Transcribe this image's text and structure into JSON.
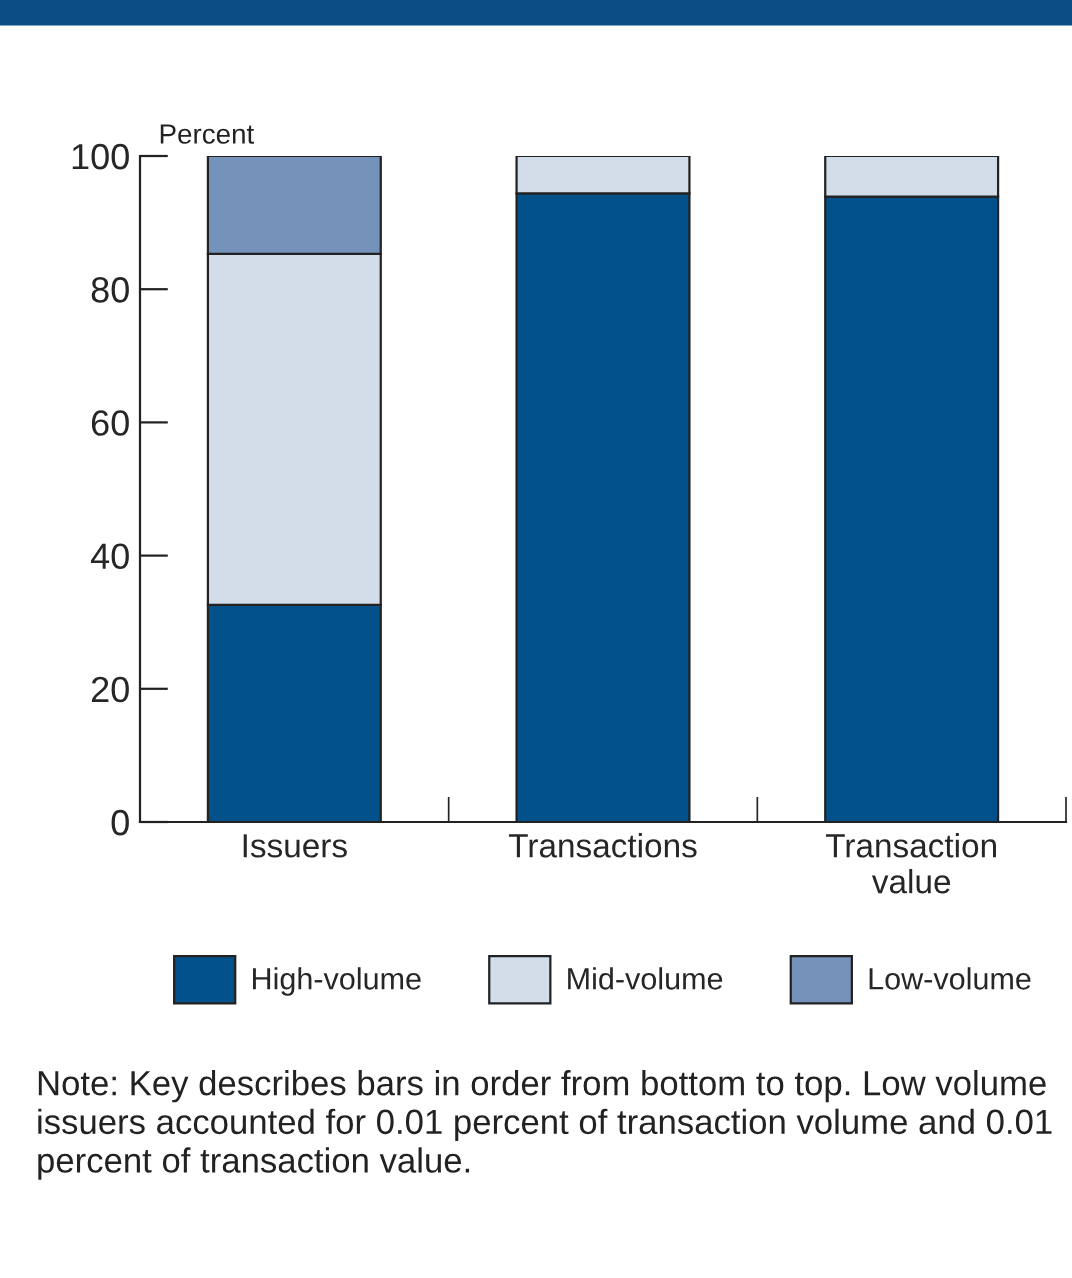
{
  "chart_data": {
    "type": "bar",
    "stacked": true,
    "ylabel": "Percent",
    "categories": [
      "Issuers",
      "Transactions",
      "Transaction\nvalue"
    ],
    "series": [
      {
        "name": "High-volume",
        "color": "#03518a",
        "values": [
          32.6,
          94.4,
          93.9
        ]
      },
      {
        "name": "Mid-volume",
        "color": "#d3dde9",
        "values": [
          52.7,
          5.6,
          6.1
        ]
      },
      {
        "name": "Low-volume",
        "color": "#7592bb",
        "values": [
          14.7,
          null,
          null
        ]
      }
    ],
    "ylim": [
      0,
      100
    ],
    "yticks": [
      0,
      20,
      40,
      60,
      80,
      100
    ],
    "grid": false,
    "legend": "bottom",
    "annotations": [
      "Note: Key describes bars in order from bottom to top. Low volume issuers accounted for 0.01 percent of transaction volume and 0.01 percent of transaction value."
    ]
  }
}
